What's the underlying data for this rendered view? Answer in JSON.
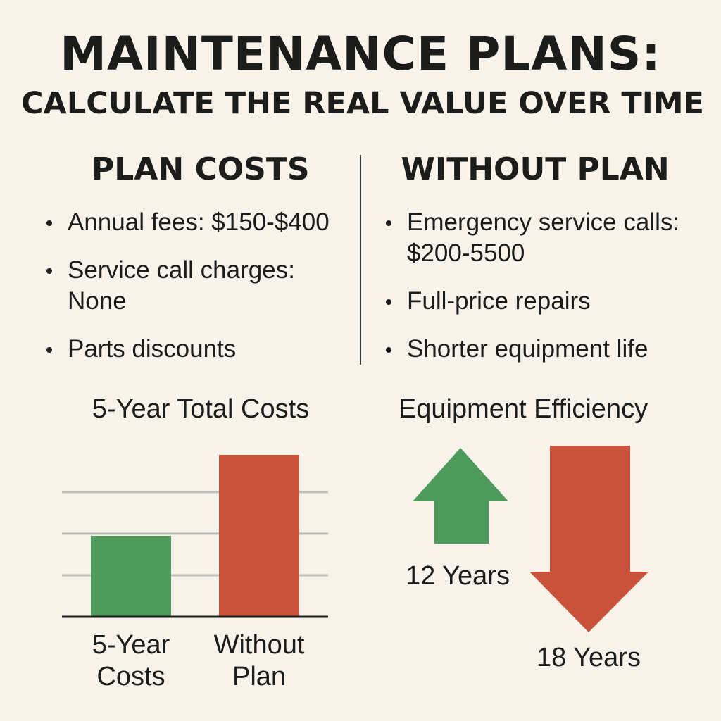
{
  "header": {
    "title": "MAINTENANCE PLANS:",
    "subtitle": "CALCULATE THE REAL VALUE OVER TIME"
  },
  "plan_costs": {
    "heading": "PLAN COSTS",
    "items": [
      {
        "lines": [
          "Annual fees: $150-$400"
        ]
      },
      {
        "lines": [
          "Service call charges:",
          "None"
        ]
      },
      {
        "lines": [
          "Parts discounts"
        ]
      }
    ]
  },
  "without_plan": {
    "heading": "WITHOUT PLAN",
    "items": [
      {
        "lines": [
          "Emergency service calls:",
          "$200-5500"
        ]
      },
      {
        "lines": [
          "Full-price repairs"
        ]
      },
      {
        "lines": [
          "Shorter equipment life"
        ]
      }
    ]
  },
  "colors": {
    "green": "#4e9a5c",
    "red": "#c8523a",
    "grid": "#bdbdb6",
    "axis": "#1c1c1a",
    "background": "#f7f3ea"
  },
  "chart_data": [
    {
      "type": "bar",
      "title": "5-Year Total Costs",
      "categories": [
        [
          "5-Year",
          "Costs"
        ],
        [
          "Without",
          "Plan"
        ]
      ],
      "values": [
        1.85,
        3.7
      ],
      "ylim": [
        0,
        3.7
      ],
      "grid": true,
      "colors": [
        "#4e9a5c",
        "#c8523a"
      ]
    },
    {
      "type": "arrows",
      "title": "Equipment Efficiency",
      "items": [
        {
          "label": "12 Years",
          "direction": "up",
          "color": "#4e9a5c"
        },
        {
          "label": "18 Years",
          "direction": "down",
          "color": "#c8523a"
        }
      ]
    }
  ]
}
